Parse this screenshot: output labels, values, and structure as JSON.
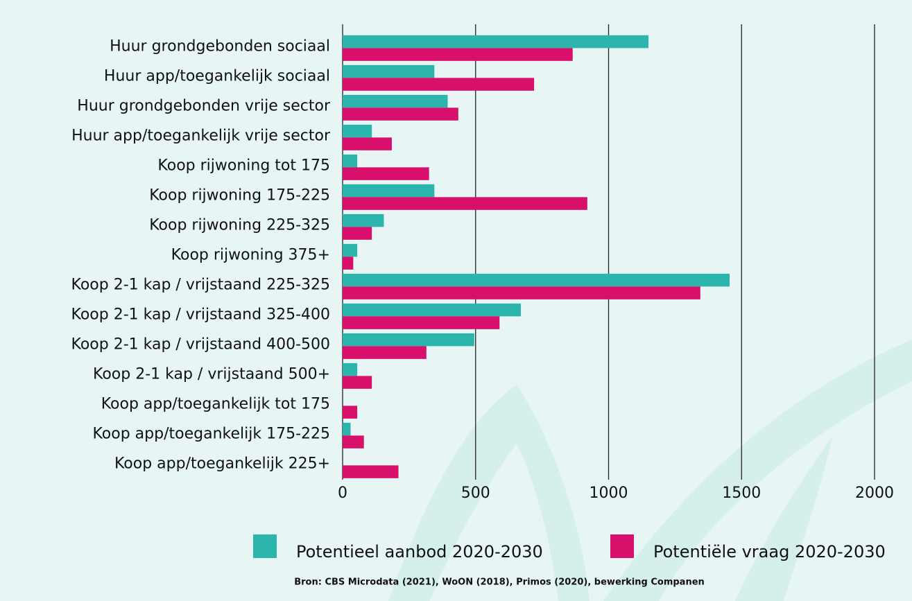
{
  "chart_data": {
    "type": "bar",
    "orientation": "horizontal",
    "categories": [
      "Huur grondgebonden sociaal",
      "Huur app/toegankelijk sociaal",
      "Huur grondgebonden vrije sector",
      "Huur app/toegankelijk vrije sector",
      "Koop rijwoning tot 175",
      "Koop rijwoning 175-225",
      "Koop rijwoning 225-325",
      "Koop rijwoning 375+",
      "Koop 2-1 kap / vrijstaand 225-325",
      "Koop 2-1 kap / vrijstaand 325-400",
      "Koop 2-1 kap / vrijstaand 400-500",
      "Koop 2-1 kap / vrijstaand 500+",
      "Koop app/toegankelijk tot 175",
      "Koop app/toegankelijk 175-225",
      "Koop app/toegankelijk 225+"
    ],
    "series": [
      {
        "name": "Potentieel aanbod 2020-2030",
        "color": "#2bb5ad",
        "values": [
          1150,
          345,
          395,
          110,
          55,
          345,
          155,
          55,
          1455,
          670,
          495,
          55,
          0,
          30,
          0
        ]
      },
      {
        "name": "Potentiële vraag 2020-2030",
        "color": "#d80f6b",
        "values": [
          865,
          720,
          435,
          185,
          325,
          920,
          110,
          40,
          1345,
          590,
          315,
          110,
          55,
          80,
          210
        ]
      }
    ],
    "xlim": [
      0,
      2000
    ],
    "xticks": [
      0,
      500,
      1000,
      1500,
      2000
    ],
    "grid": true,
    "legend": "bottom",
    "source": "Bron: CBS Microdata (2021), WoON (2018), Primos (2020), bewerking Companen"
  }
}
